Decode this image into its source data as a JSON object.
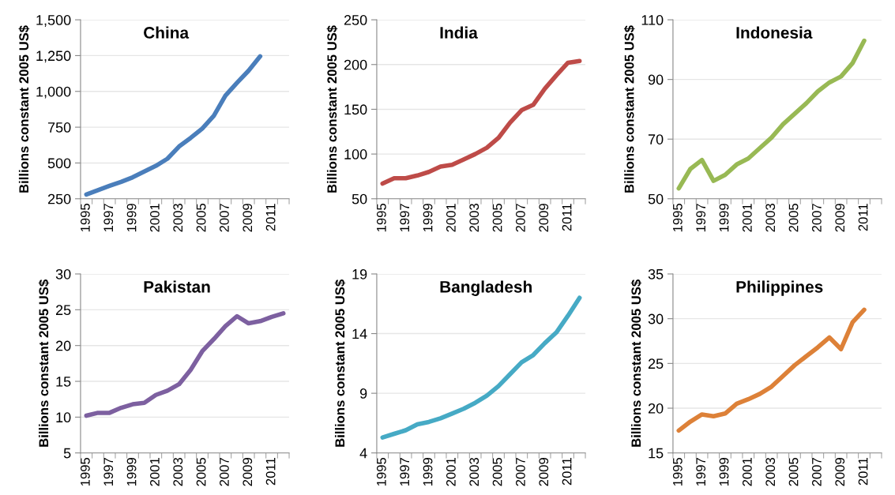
{
  "chart_data": [
    {
      "type": "line",
      "title": "China",
      "ylabel": "Billions constant 2005 US$",
      "categories": [
        "1995",
        null,
        "1997",
        null,
        "1999",
        null,
        "2001",
        null,
        "2003",
        null,
        "2005",
        null,
        "2007",
        null,
        "2009",
        null,
        "2011",
        null
      ],
      "series": [
        {
          "color": "#4a7ebb",
          "values": [
            280,
            310,
            340,
            368,
            400,
            440,
            480,
            530,
            615,
            675,
            740,
            830,
            970,
            1060,
            1145,
            1245,
            null,
            null
          ]
        }
      ],
      "ylim": [
        250,
        1500
      ],
      "yticks": [
        250,
        500,
        750,
        {
          "value": 1000,
          "label": "1,000"
        },
        {
          "value": 1250,
          "label": "1,250"
        },
        {
          "value": 1500,
          "label": "1,500"
        }
      ],
      "grid": "y"
    },
    {
      "type": "line",
      "title": "India",
      "ylabel": "Billions constant 2005 US$",
      "categories": [
        "1995",
        null,
        "1997",
        null,
        "1999",
        null,
        "2001",
        null,
        "2003",
        null,
        "2005",
        null,
        "2007",
        null,
        "2009",
        null,
        "2011",
        null
      ],
      "series": [
        {
          "color": "#be4b48",
          "values": [
            67,
            73,
            73,
            76,
            80,
            86,
            88,
            94,
            100,
            107,
            118,
            135,
            149,
            155,
            173,
            188,
            202,
            204
          ]
        }
      ],
      "ylim": [
        50,
        250
      ],
      "yticks": [
        50,
        100,
        150,
        200,
        250
      ],
      "grid": "y"
    },
    {
      "type": "line",
      "title": "Indonesia",
      "ylabel": "Billions constant 2005 US$",
      "categories": [
        "1995",
        null,
        "1997",
        null,
        "1999",
        null,
        "2001",
        null,
        "2003",
        null,
        "2005",
        null,
        "2007",
        null,
        "2009",
        null,
        "2011",
        null
      ],
      "series": [
        {
          "color": "#98b954",
          "values": [
            53.5,
            60,
            63,
            56,
            58,
            61.5,
            63.5,
            67,
            70.5,
            75,
            78.5,
            82,
            86,
            89,
            91,
            95.5,
            103,
            null
          ]
        }
      ],
      "ylim": [
        50,
        110
      ],
      "yticks": [
        50,
        70,
        90,
        110
      ],
      "grid": "y"
    },
    {
      "type": "line",
      "title": "Pakistan",
      "ylabel": "Billions constant 2005 US$",
      "categories": [
        "1995",
        null,
        "1997",
        null,
        "1999",
        null,
        "2001",
        null,
        "2003",
        null,
        "2005",
        null,
        "2007",
        null,
        "2009",
        null,
        "2011",
        null
      ],
      "series": [
        {
          "color": "#7d60a0",
          "values": [
            10.2,
            10.6,
            10.6,
            11.3,
            11.8,
            12.0,
            13.1,
            13.7,
            14.6,
            16.6,
            19.2,
            20.9,
            22.7,
            24.1,
            23.1,
            23.4,
            24.0,
            24.5
          ]
        }
      ],
      "ylim": [
        5,
        30
      ],
      "yticks": [
        5,
        10,
        15,
        20,
        25,
        30
      ],
      "grid": "y"
    },
    {
      "type": "line",
      "title": "Bangladesh",
      "ylabel": "Billions constant 2005 US$",
      "categories": [
        "1995",
        null,
        "1997",
        null,
        "1999",
        null,
        "2001",
        null,
        "2003",
        null,
        "2005",
        null,
        "2007",
        null,
        "2009",
        null,
        "2011",
        null
      ],
      "series": [
        {
          "color": "#46aac5",
          "values": [
            5.3,
            5.6,
            5.9,
            6.4,
            6.6,
            6.9,
            7.3,
            7.7,
            8.2,
            8.8,
            9.6,
            10.6,
            11.6,
            12.2,
            13.2,
            14.1,
            15.5,
            17.0
          ]
        }
      ],
      "ylim": [
        4,
        19
      ],
      "yticks": [
        4,
        9,
        14,
        19
      ],
      "grid": "y"
    },
    {
      "type": "line",
      "title": "Philippines",
      "ylabel": "Billions constant 2005 US$",
      "categories": [
        "1995",
        null,
        "1997",
        null,
        "1999",
        null,
        "2001",
        null,
        "2003",
        null,
        "2005",
        null,
        "2007",
        null,
        "2009",
        null,
        "2011",
        null
      ],
      "series": [
        {
          "color": "#dd8138",
          "values": [
            17.5,
            18.5,
            19.3,
            19.1,
            19.4,
            20.5,
            21.0,
            21.6,
            22.4,
            23.6,
            24.8,
            25.8,
            26.8,
            27.9,
            26.6,
            29.6,
            31.0,
            null
          ]
        }
      ],
      "ylim": [
        15,
        35
      ],
      "yticks": [
        15,
        20,
        25,
        30,
        35
      ],
      "grid": "y"
    }
  ]
}
